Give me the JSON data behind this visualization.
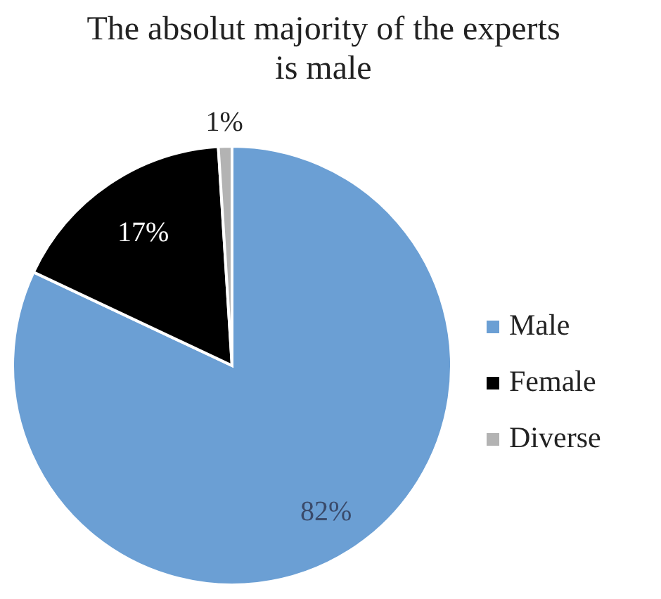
{
  "chart_data": {
    "type": "pie",
    "title": "The absolut majority of the experts is male",
    "categories": [
      "Male",
      "Female",
      "Diverse"
    ],
    "values": [
      82,
      17,
      1
    ],
    "colors": [
      "#6b9fd4",
      "#000000",
      "#b3b3b3"
    ],
    "value_labels": [
      "82%",
      "17%",
      "1%"
    ],
    "legend": "right"
  }
}
